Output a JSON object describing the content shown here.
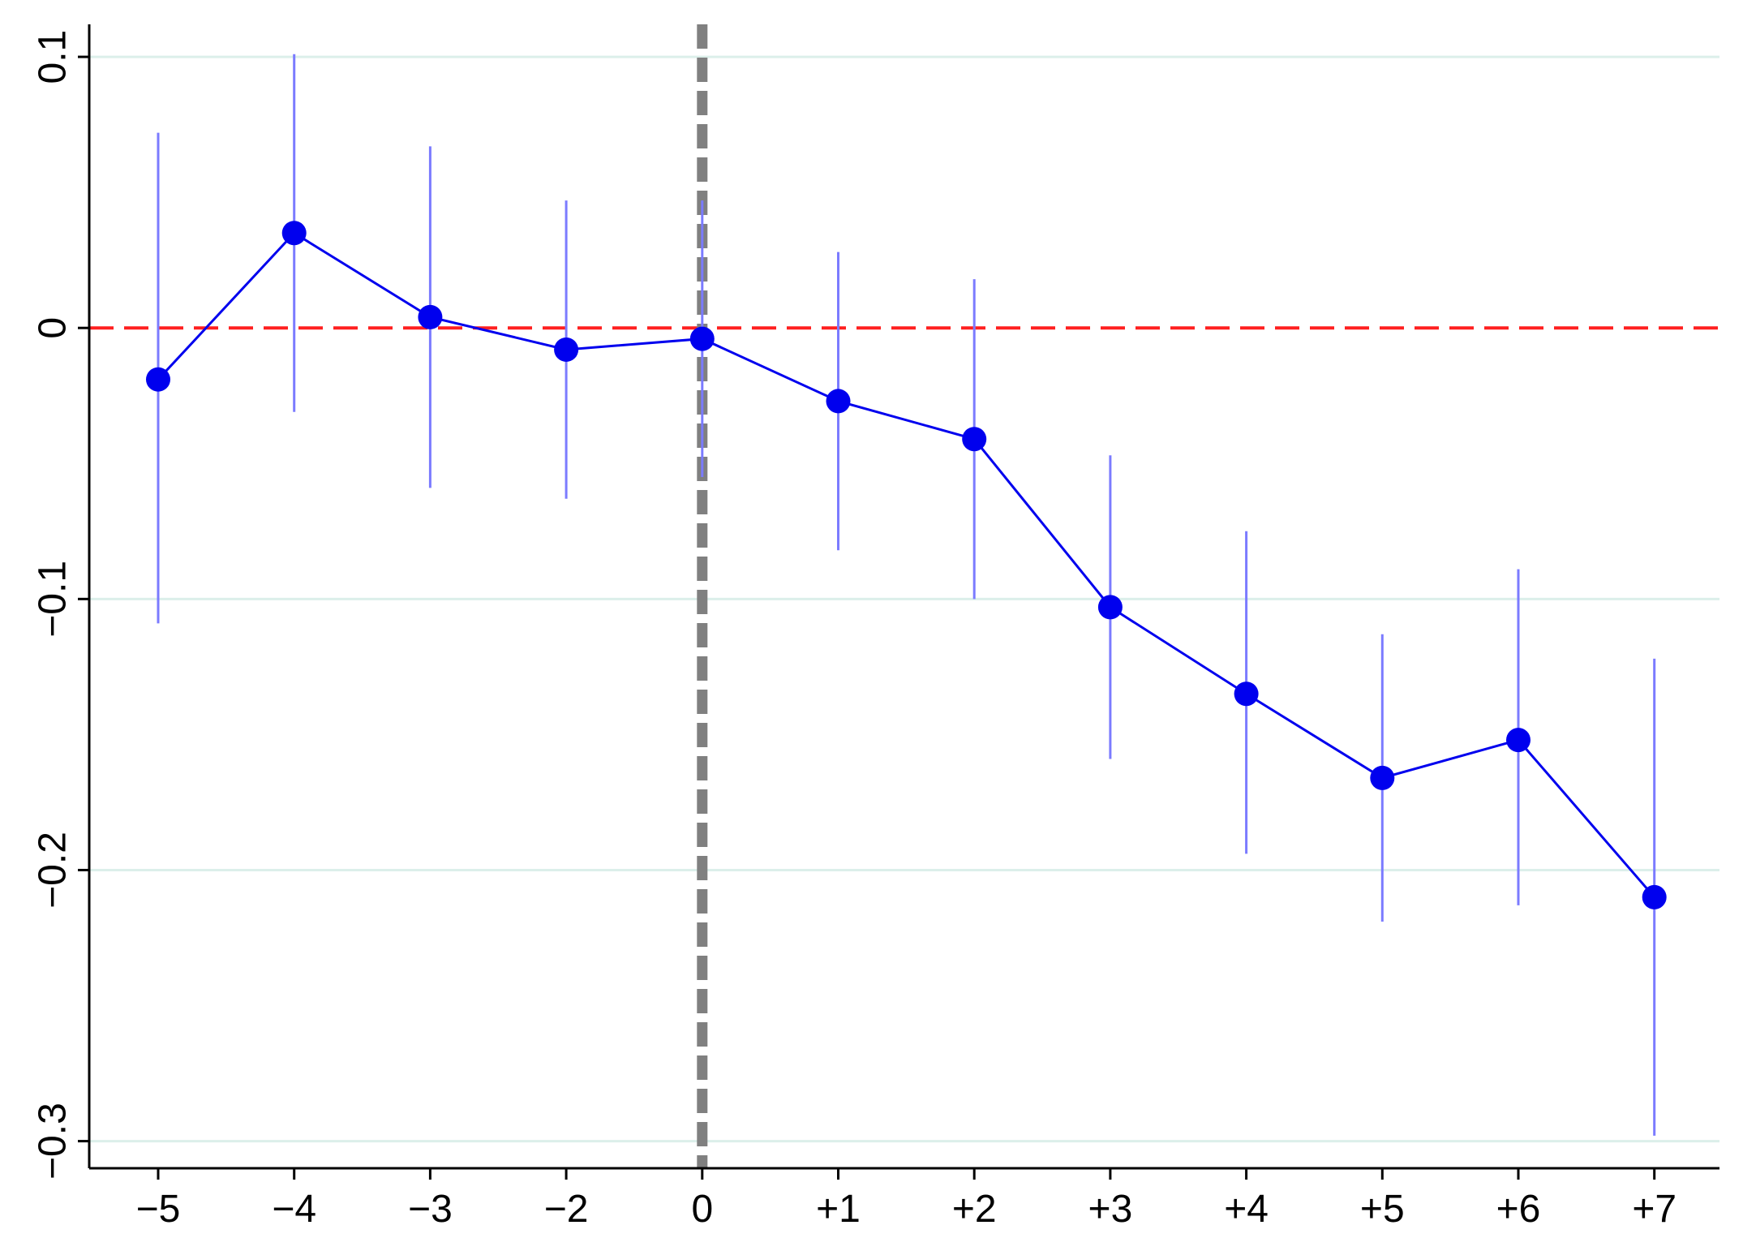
{
  "chart_data": {
    "type": "line",
    "title": "",
    "xlabel": "",
    "ylabel": "",
    "categories": [
      "−5",
      "−4",
      "−3",
      "−2",
      "0",
      "+1",
      "+2",
      "+3",
      "+4",
      "+5",
      "+6",
      "+7"
    ],
    "series": [
      {
        "values": [
          -0.019,
          0.035,
          0.004,
          -0.008,
          -0.004,
          -0.027,
          -0.041,
          -0.103,
          -0.135,
          -0.166,
          -0.152,
          -0.21
        ],
        "ci_lower": [
          -0.109,
          -0.031,
          -0.059,
          -0.063,
          -0.055,
          -0.082,
          -0.1,
          -0.159,
          -0.194,
          -0.219,
          -0.213,
          -0.298
        ],
        "ci_upper": [
          0.072,
          0.101,
          0.067,
          0.047,
          0.047,
          0.028,
          0.018,
          -0.047,
          -0.075,
          -0.113,
          -0.089,
          -0.122
        ]
      }
    ],
    "ylim": [
      -0.31,
      0.112
    ],
    "yticks": [
      0.1,
      0,
      -0.1,
      -0.2,
      -0.3
    ],
    "ytick_labels": [
      "0.1",
      "0",
      "−0.1",
      "−0.2",
      "−0.3"
    ],
    "reference_lines": [
      {
        "axis": "y",
        "value": 0,
        "style": "dashed",
        "color": "#ff2020"
      },
      {
        "axis": "x",
        "category": "0",
        "style": "dashed",
        "color": "#808080"
      }
    ],
    "grid": "horizontal",
    "legend": "none",
    "colors": {
      "series": "#0000ee",
      "ci": "#7b7bff",
      "grid": "#dcefea",
      "zero_line": "#ff2020",
      "event_line": "#808080"
    }
  }
}
